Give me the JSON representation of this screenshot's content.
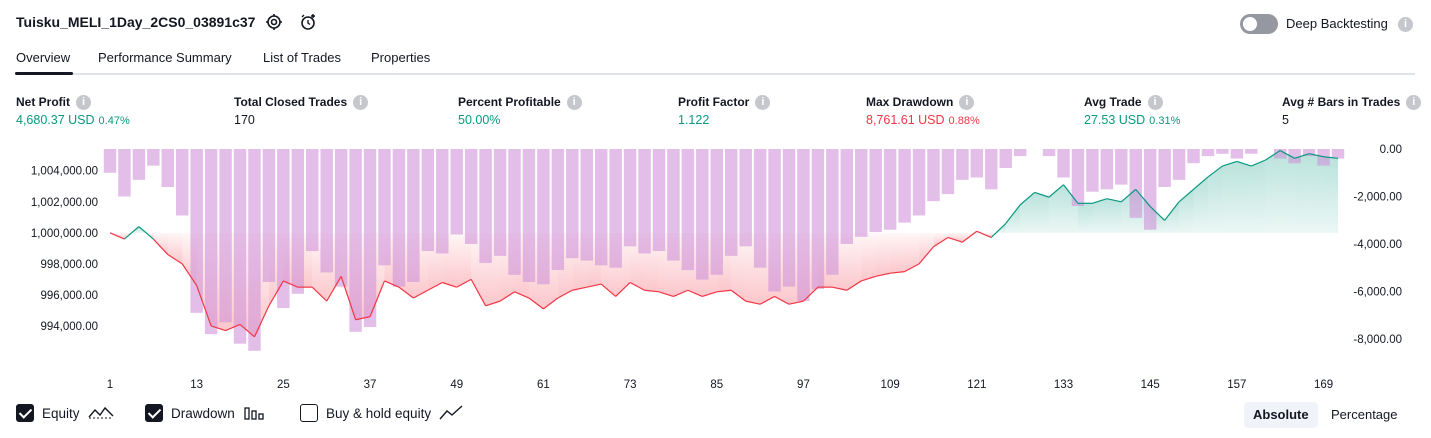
{
  "header": {
    "title": "Tuisku_MELI_1Day_2CS0_03891c37",
    "settings_icon": "gear-icon",
    "alert_icon": "add-alarm-icon",
    "deep_backtesting_label": "Deep Backtesting",
    "deep_backtesting_on": false
  },
  "tabs": [
    {
      "label": "Overview",
      "active": true
    },
    {
      "label": "Performance Summary",
      "active": false
    },
    {
      "label": "List of Trades",
      "active": false
    },
    {
      "label": "Properties",
      "active": false
    }
  ],
  "metrics": {
    "net_profit": {
      "label": "Net Profit",
      "value": "4,680.37 USD",
      "pct": "0.47%"
    },
    "total_closed_trades": {
      "label": "Total Closed Trades",
      "value": "170"
    },
    "percent_profitable": {
      "label": "Percent Profitable",
      "value": "50.00%"
    },
    "profit_factor": {
      "label": "Profit Factor",
      "value": "1.122"
    },
    "max_drawdown": {
      "label": "Max Drawdown",
      "value": "8,761.61 USD",
      "pct": "0.88%"
    },
    "avg_trade": {
      "label": "Avg Trade",
      "value": "27.53 USD",
      "pct": "0.31%"
    },
    "avg_bars": {
      "label": "Avg # Bars in Trades",
      "value": "5"
    }
  },
  "help_glyph": "i",
  "chart_data": {
    "type": "area",
    "x_ticks": [
      "1",
      "13",
      "25",
      "37",
      "49",
      "61",
      "73",
      "85",
      "97",
      "109",
      "121",
      "133",
      "145",
      "157",
      "169"
    ],
    "xlim": [
      1,
      171
    ],
    "left_axis": {
      "ticks": [
        "1,004,000.00",
        "1,002,000.00",
        "1,000,000.00",
        "998,000.00",
        "996,000.00",
        "994,000.00"
      ],
      "tick_values": [
        1004000,
        1002000,
        1000000,
        998000,
        996000,
        994000
      ],
      "ylim": [
        992000,
        1005400
      ],
      "baseline": 1000000
    },
    "right_axis": {
      "ticks": [
        "0.00",
        "-2,000.00",
        "-4,000.00",
        "-6,000.00",
        "-8,000.00"
      ],
      "tick_values": [
        0,
        -2000,
        -4000,
        -6000,
        -8000
      ],
      "ylim": [
        -8761.61,
        0
      ]
    },
    "colors": {
      "profit": "#089981",
      "loss": "#f23645",
      "drawdown_bar": "#ce93d8",
      "axis_text": "#131722"
    },
    "series": [
      {
        "name": "Equity",
        "x": [
          1,
          3,
          5,
          7,
          9,
          11,
          13,
          15,
          17,
          19,
          21,
          23,
          25,
          27,
          29,
          31,
          33,
          35,
          37,
          39,
          41,
          43,
          45,
          47,
          49,
          51,
          53,
          55,
          57,
          59,
          61,
          63,
          65,
          67,
          69,
          71,
          73,
          75,
          77,
          79,
          81,
          83,
          85,
          87,
          89,
          91,
          93,
          95,
          97,
          99,
          101,
          103,
          105,
          107,
          109,
          111,
          113,
          115,
          117,
          119,
          121,
          123,
          125,
          127,
          129,
          131,
          133,
          135,
          137,
          139,
          141,
          143,
          145,
          147,
          149,
          151,
          153,
          155,
          157,
          159,
          161,
          163,
          165,
          167,
          169,
          171
        ],
        "values": [
          1000000,
          999600,
          1000400,
          999600,
          998600,
          998000,
          996600,
          994000,
          993700,
          994100,
          993300,
          995300,
          996900,
          996500,
          996500,
          995600,
          997200,
          994400,
          994600,
          996900,
          996500,
          995800,
          996300,
          996800,
          996500,
          997000,
          995300,
          995600,
          996200,
          995800,
          995100,
          995800,
          996300,
          996500,
          996700,
          995900,
          996800,
          996300,
          996200,
          995900,
          996300,
          995900,
          996200,
          996300,
          995600,
          995400,
          995900,
          995400,
          995600,
          996500,
          996500,
          996300,
          996900,
          997200,
          997400,
          997500,
          998000,
          999100,
          999700,
          999400,
          1000100,
          999700,
          1000600,
          1001800,
          1002600,
          1002300,
          1003100,
          1001900,
          1001900,
          1002200,
          1002000,
          1002800,
          1001700,
          1000800,
          1002000,
          1002800,
          1003600,
          1004300,
          1004600,
          1004300,
          1004700,
          1005300,
          1004800,
          1005100,
          1004900,
          1004800
        ]
      },
      {
        "name": "Drawdown",
        "x": [
          1,
          3,
          5,
          7,
          9,
          11,
          13,
          15,
          17,
          19,
          21,
          23,
          25,
          27,
          29,
          31,
          33,
          35,
          37,
          39,
          41,
          43,
          45,
          47,
          49,
          51,
          53,
          55,
          57,
          59,
          61,
          63,
          65,
          67,
          69,
          71,
          73,
          75,
          77,
          79,
          81,
          83,
          85,
          87,
          89,
          91,
          93,
          95,
          97,
          99,
          101,
          103,
          105,
          107,
          109,
          111,
          113,
          115,
          117,
          119,
          121,
          123,
          125,
          127,
          129,
          131,
          133,
          135,
          137,
          139,
          141,
          143,
          145,
          147,
          149,
          151,
          153,
          155,
          157,
          159,
          161,
          163,
          165,
          167,
          169,
          171
        ],
        "values": [
          -1000,
          -2000,
          -1300,
          -700,
          -1600,
          -2800,
          -6900,
          -7800,
          -7300,
          -8200,
          -8500,
          -5600,
          -6700,
          -6100,
          -4300,
          -5200,
          -5800,
          -7700,
          -7500,
          -4900,
          -5800,
          -5600,
          -4300,
          -4400,
          -3600,
          -4000,
          -4800,
          -4500,
          -5300,
          -5600,
          -5700,
          -5100,
          -4600,
          -4700,
          -4900,
          -5000,
          -4100,
          -4400,
          -4300,
          -4700,
          -5100,
          -5500,
          -5300,
          -4500,
          -4100,
          -5000,
          -6000,
          -5800,
          -6400,
          -5900,
          -5300,
          -4000,
          -3700,
          -3500,
          -3400,
          -3100,
          -2800,
          -2200,
          -1900,
          -1300,
          -1200,
          -1700,
          -800,
          -300,
          0,
          -300,
          -1200,
          -2400,
          -1800,
          -1700,
          -1500,
          -2900,
          -3400,
          -1600,
          -1300,
          -600,
          -300,
          -200,
          -400,
          -200,
          0,
          -400,
          -600,
          -300,
          -700,
          -400
        ]
      }
    ]
  },
  "footer": {
    "equity": {
      "label": "Equity",
      "checked": true,
      "icon": "equity-line-icon"
    },
    "drawdown": {
      "label": "Drawdown",
      "checked": true,
      "icon": "drawdown-bars-icon"
    },
    "buy_hold": {
      "label": "Buy & hold equity",
      "checked": false,
      "icon": "buy-hold-line-icon"
    },
    "absolute_label": "Absolute",
    "percentage_label": "Percentage",
    "active_mode": "Absolute"
  }
}
